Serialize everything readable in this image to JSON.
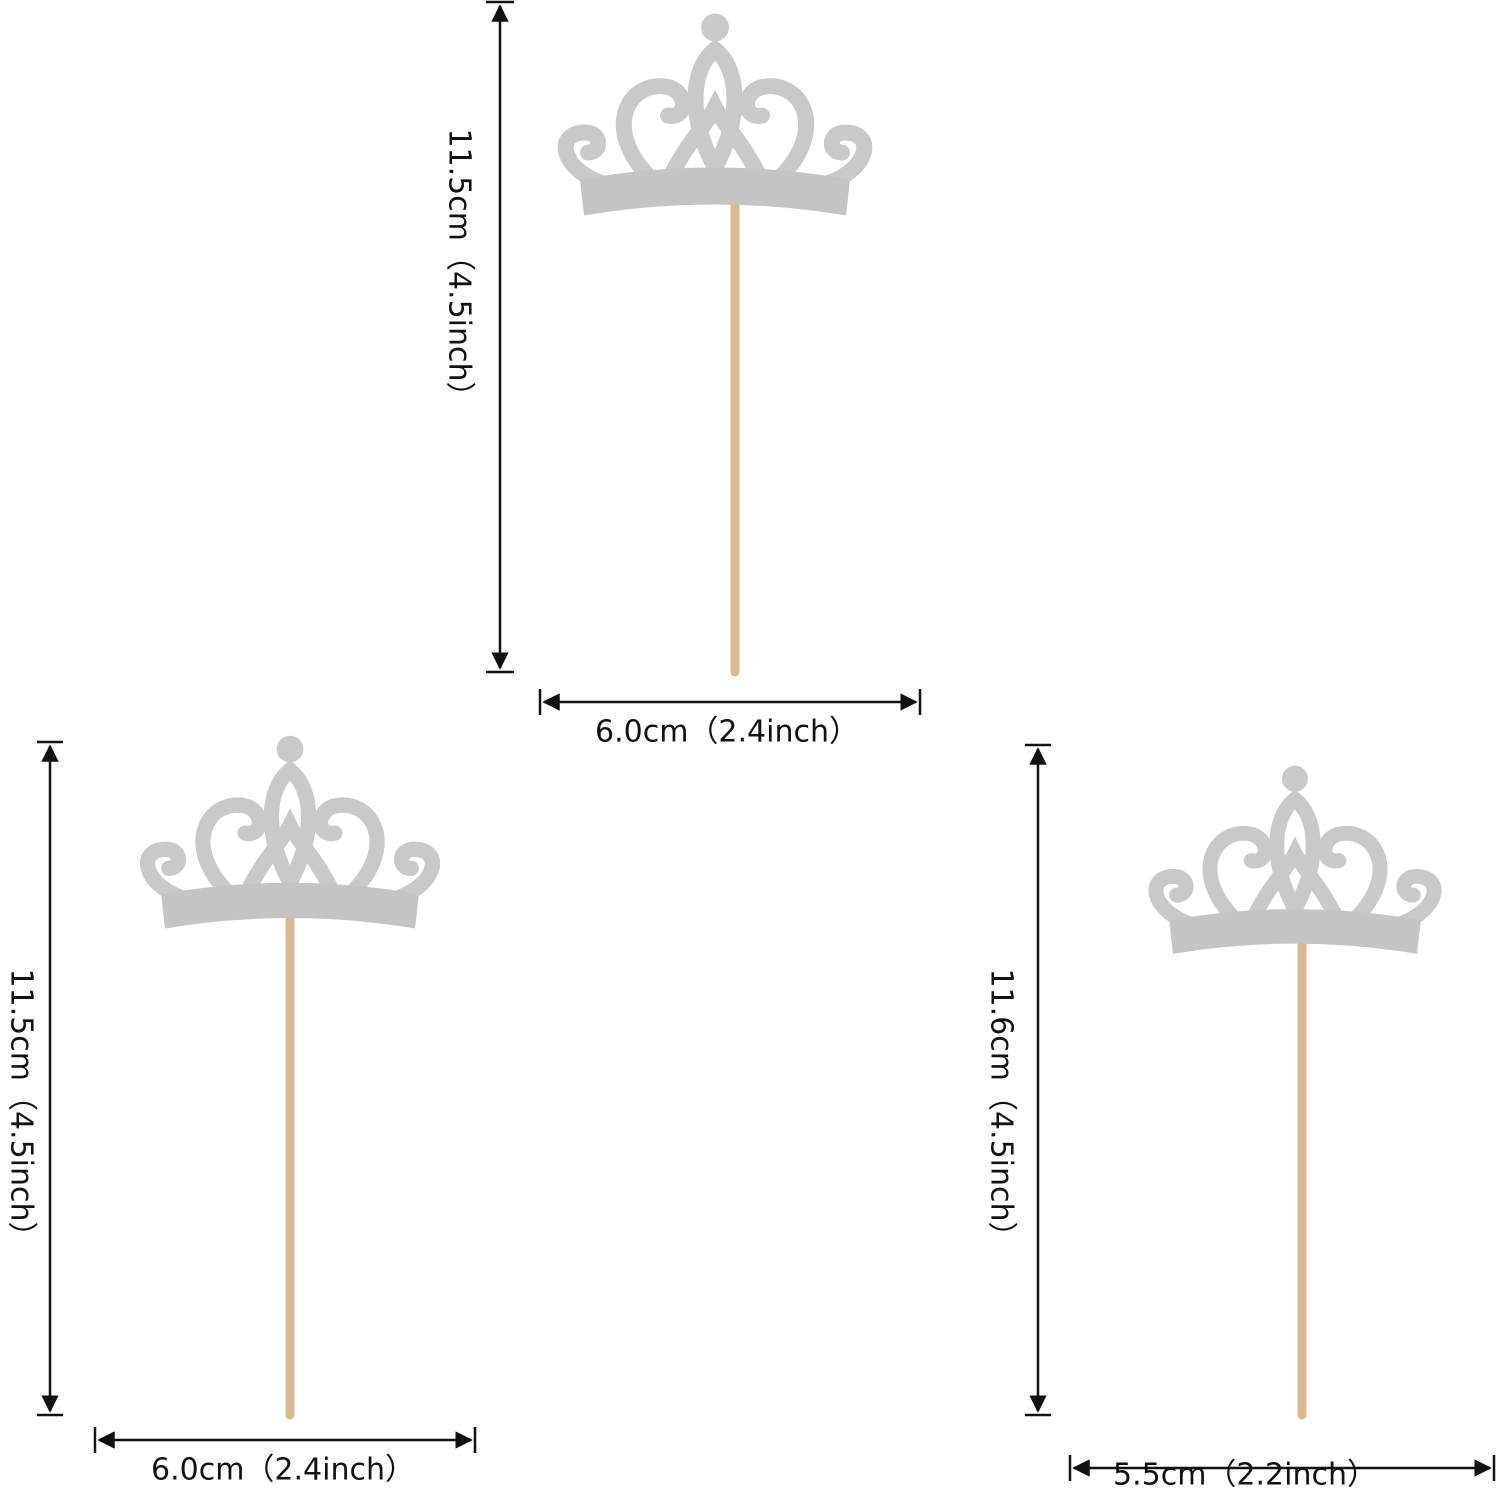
{
  "toppers": [
    {
      "height": "11.5cm（4.5inch）",
      "width": "6.0cm（2.4inch）"
    },
    {
      "height": "11.5cm（4.5inch）",
      "width": "6.0cm（2.4inch）"
    },
    {
      "height": "11.6cm（4.5inch）",
      "width": "5.5cm（2.2inch）"
    }
  ]
}
